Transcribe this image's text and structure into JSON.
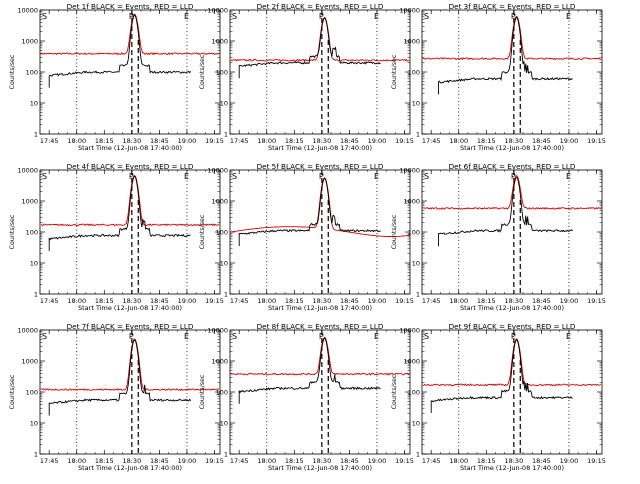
{
  "chart_data": {
    "type": "line",
    "shared": {
      "xlabel": "Start Time (12-Jun-08 17:40:00)",
      "ylabel": "Counts/sec",
      "x_ticks": [
        "17:45",
        "18:00",
        "18:15",
        "18:30",
        "18:45",
        "19:00",
        "19:15"
      ],
      "x_tick_minutes": [
        5,
        20,
        35,
        50,
        65,
        80,
        95
      ],
      "xlim_minutes_after_start": [
        0,
        98
      ],
      "y_scale": "log",
      "ylim": [
        1,
        10000
      ],
      "y_ticks": [
        "1",
        "10",
        "100",
        "1000",
        "10000"
      ],
      "y_tick_values": [
        1,
        10,
        100,
        1000,
        10000
      ],
      "vertical_markers": [
        {
          "minute": 20,
          "style": "dotted",
          "label": ""
        },
        {
          "minute": 50,
          "style": "dashed",
          "label": "P"
        },
        {
          "minute": 80,
          "style": "dotted",
          "label": "E"
        }
      ],
      "start_marker_label": "S",
      "series_colors": {
        "events": "#000000",
        "lld": "#dd0000"
      }
    },
    "panels": [
      {
        "title": "Det 1f BLACK = Events, RED = LLD",
        "lld_base": 390,
        "events_base": 90,
        "peak": 7000,
        "events_start_minute": 5
      },
      {
        "title": "Det 2f BLACK = Events, RED = LLD",
        "lld_base": 240,
        "events_base": 180,
        "peak": 5500,
        "events_start_minute": 5
      },
      {
        "title": "Det 3f BLACK = Events, RED = LLD",
        "lld_base": 270,
        "events_base": 55,
        "peak": 6000,
        "events_start_minute": 9
      },
      {
        "title": "Det 4f BLACK = Events, RED = LLD",
        "lld_base": 170,
        "events_base": 70,
        "peak": 6500,
        "events_start_minute": 5
      },
      {
        "title": "Det 5f BLACK = Events, RED = LLD",
        "lld_base": 110,
        "events_base": 100,
        "peak": 5500,
        "events_start_minute": 5
      },
      {
        "title": "Det 6f BLACK = Events, RED = LLD",
        "lld_base": 580,
        "events_base": 100,
        "peak": 6000,
        "events_start_minute": 9
      },
      {
        "title": "Det 7f BLACK = Events, RED = LLD",
        "lld_base": 120,
        "events_base": 50,
        "peak": 5000,
        "events_start_minute": 5
      },
      {
        "title": "Det 8f BLACK = Events, RED = LLD",
        "lld_base": 380,
        "events_base": 120,
        "peak": 5500,
        "events_start_minute": 5
      },
      {
        "title": "Det 9f BLACK = Events, RED = LLD",
        "lld_base": 170,
        "events_base": 60,
        "peak": 5000,
        "events_start_minute": 5
      }
    ]
  }
}
